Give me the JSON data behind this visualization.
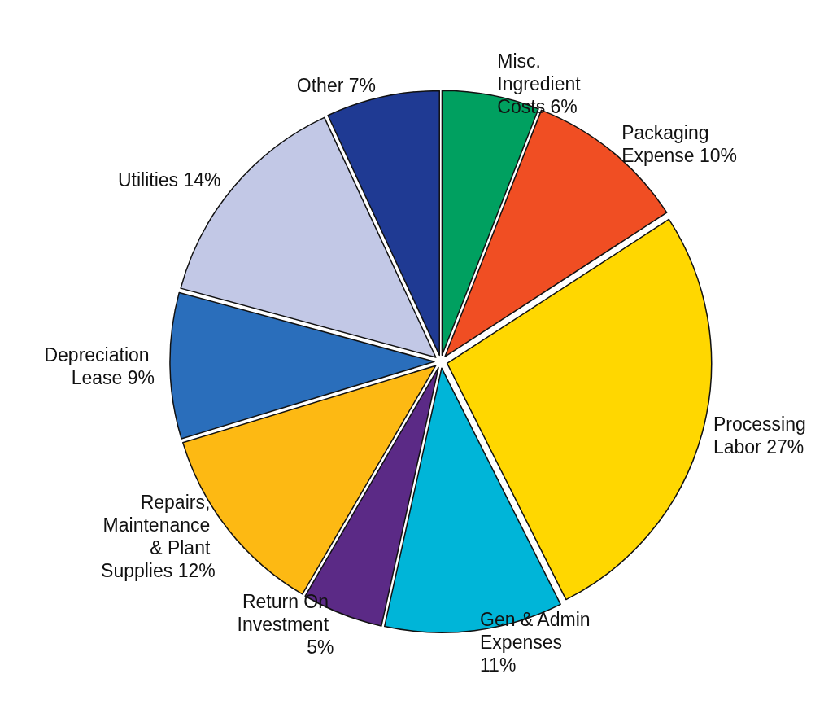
{
  "chart_data": {
    "type": "pie",
    "categories": [
      "Misc. Ingredient Costs",
      "Packaging Expense",
      "Processing Labor",
      "Gen & Admin Expenses",
      "Return On Investment",
      "Repairs, Maintenance & Plant Supplies",
      "Depreciation Lease",
      "Utilities",
      "Other"
    ],
    "values": [
      6,
      10,
      27,
      11,
      5,
      12,
      9,
      14,
      7
    ],
    "value_labels": [
      "6%",
      "10%",
      "27%",
      "11%",
      "5%",
      "12%",
      "9%",
      "14%",
      "7%"
    ],
    "colors": [
      "#00a060",
      "#f04e23",
      "#ffd700",
      "#00b5d8",
      "#5b2a86",
      "#fdb913",
      "#2a6ebb",
      "#c2c8e6",
      "#1f3a93"
    ]
  }
}
